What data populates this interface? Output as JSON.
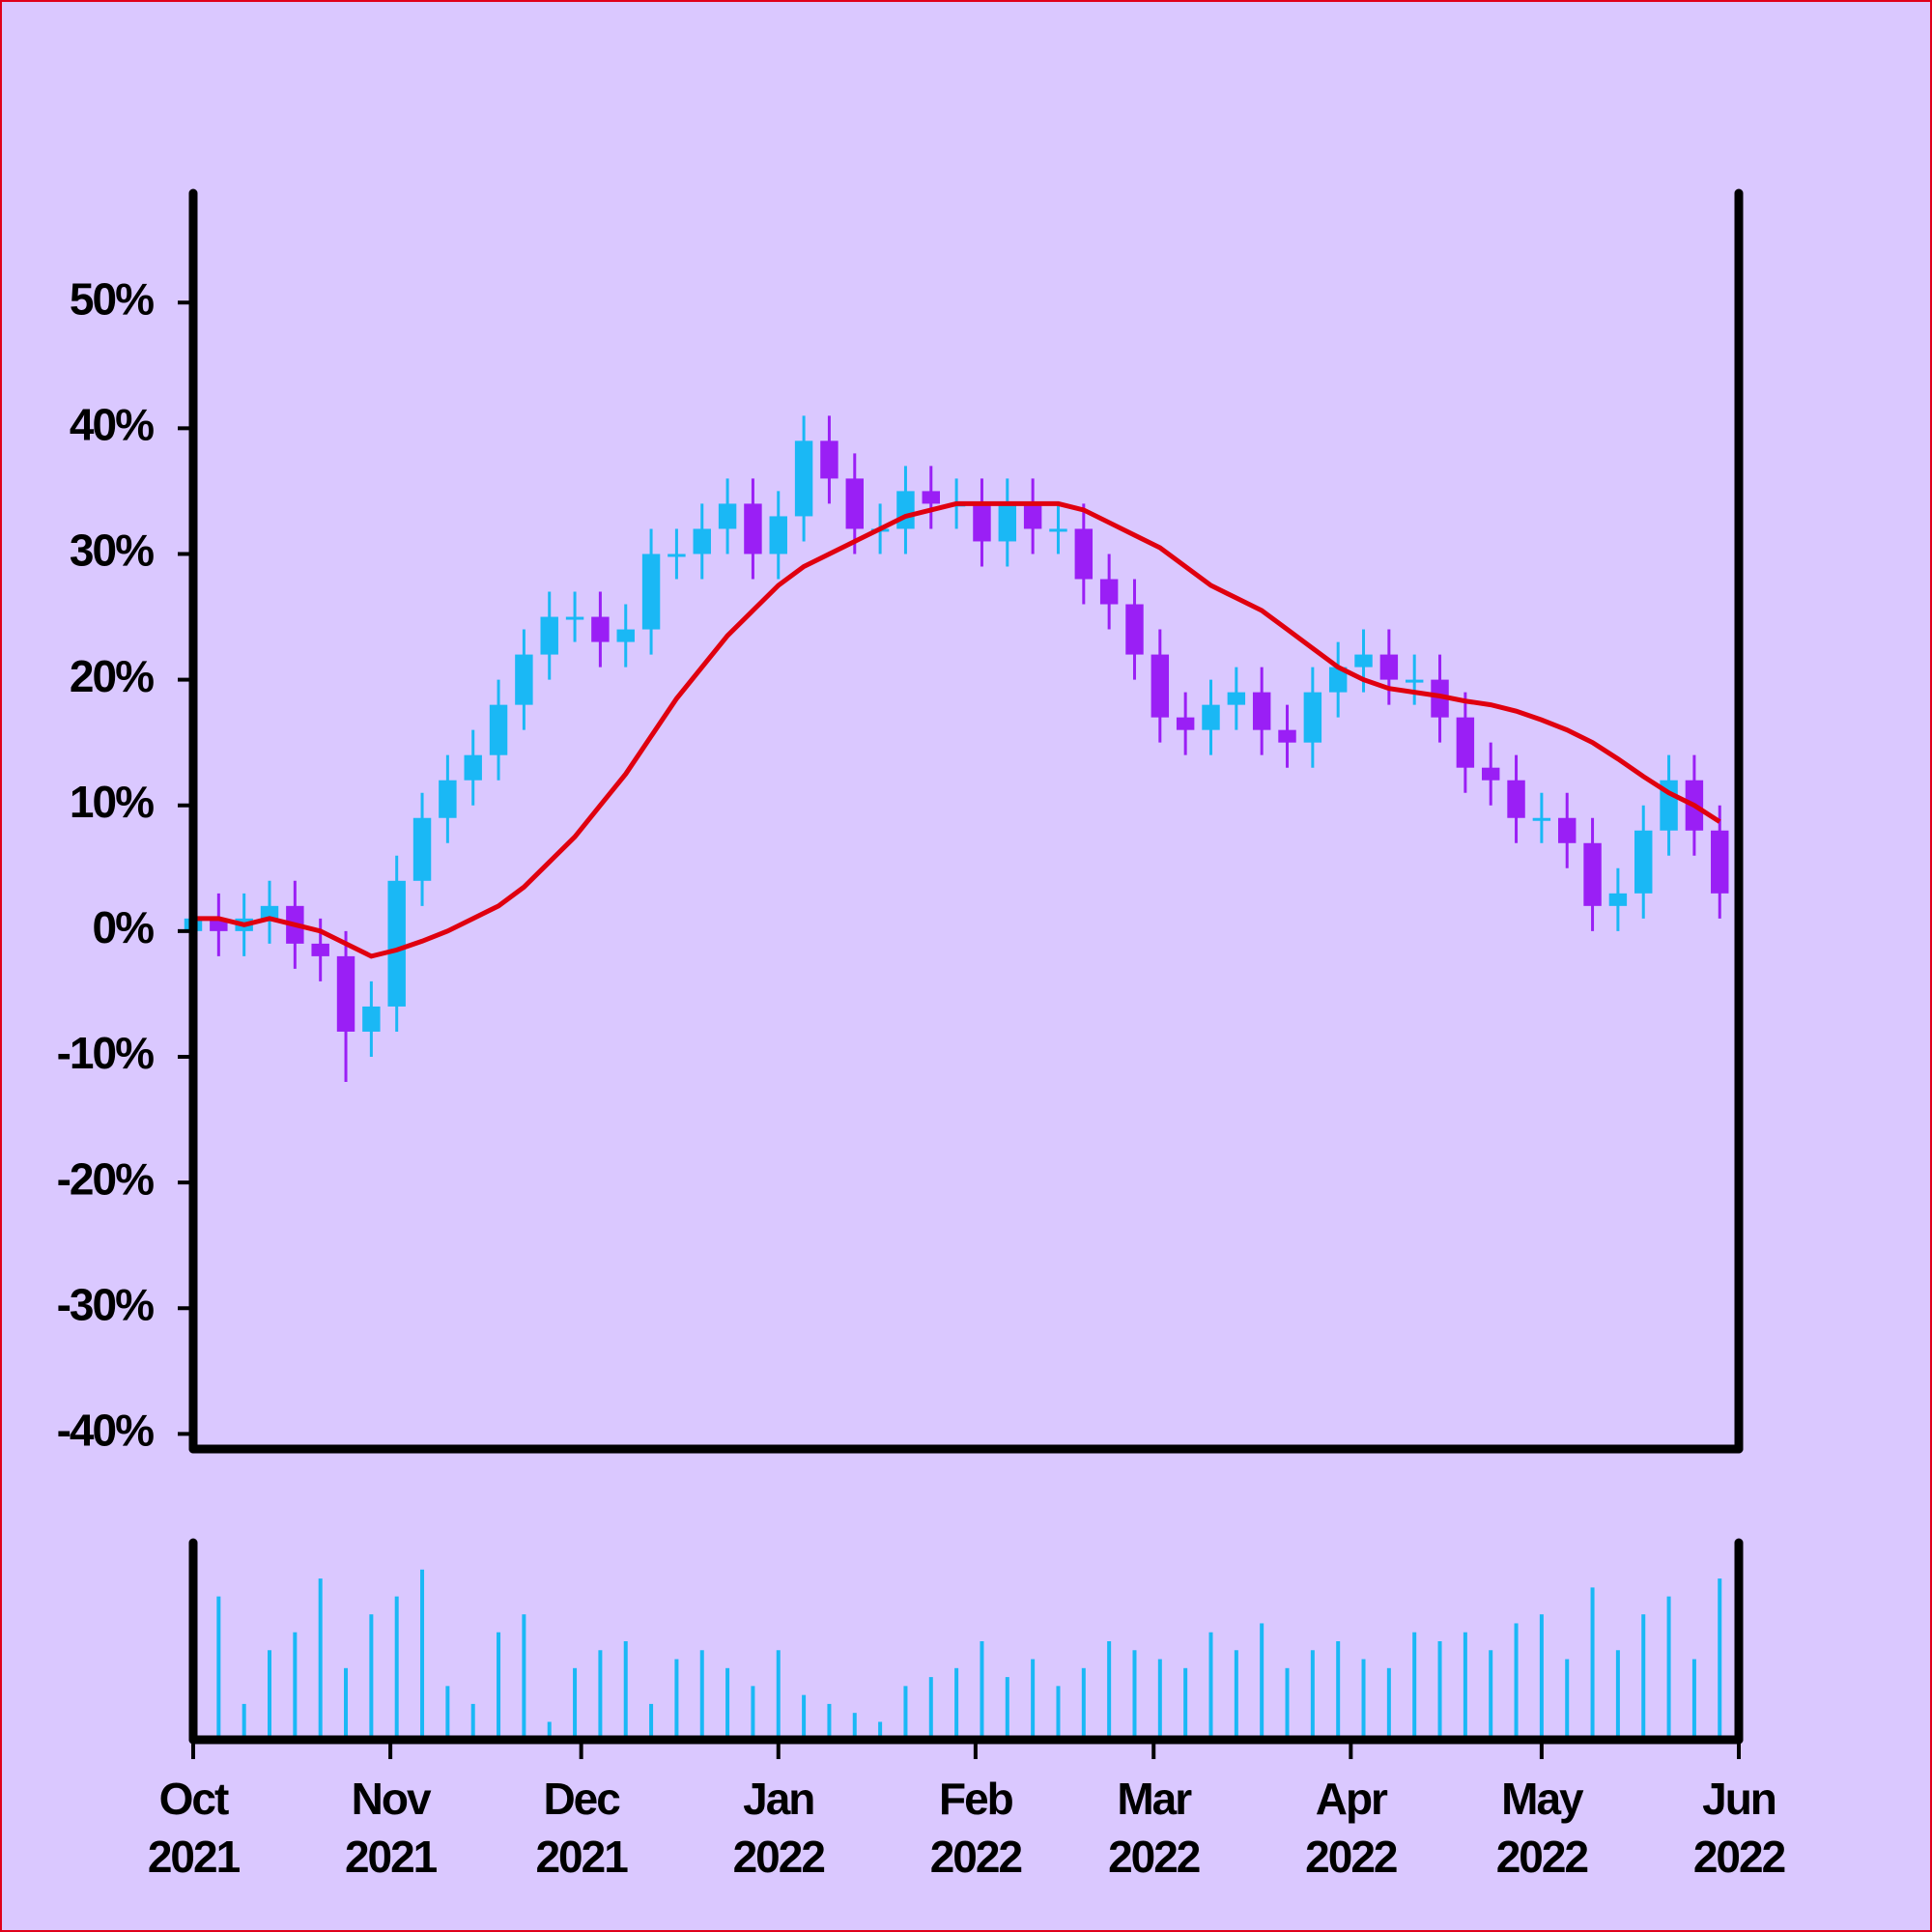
{
  "chart_data": {
    "type": "candlestick",
    "x": [
      0,
      4,
      8,
      12,
      16,
      20,
      24,
      28,
      32,
      36,
      40,
      44,
      48,
      52,
      56,
      60,
      64,
      68,
      72,
      76,
      80,
      84,
      88,
      92,
      96,
      100,
      104,
      108,
      112,
      116,
      120,
      124,
      128,
      132,
      136,
      140,
      144,
      148,
      152,
      156,
      160,
      164,
      168,
      172,
      176,
      180,
      184,
      188,
      192,
      196,
      200,
      204,
      208,
      212,
      216,
      220,
      224,
      228,
      232,
      236,
      240
    ],
    "open": [
      0,
      1,
      0,
      1,
      2,
      -1,
      -2,
      -8,
      -6,
      4,
      9,
      12,
      14,
      18,
      22,
      25,
      25,
      23,
      24,
      30,
      30,
      32,
      34,
      30,
      33,
      39,
      36,
      32,
      32,
      35,
      34,
      34,
      31,
      34,
      32,
      32,
      28,
      26,
      22,
      17,
      16,
      18,
      19,
      16,
      15,
      19,
      21,
      22,
      20,
      20,
      17,
      13,
      12,
      9,
      9,
      7,
      2,
      3,
      8,
      12,
      8
    ],
    "high": [
      3,
      3,
      3,
      4,
      4,
      1,
      0,
      -4,
      6,
      11,
      14,
      16,
      20,
      24,
      27,
      27,
      27,
      26,
      32,
      32,
      34,
      36,
      36,
      35,
      41,
      41,
      38,
      34,
      37,
      37,
      36,
      36,
      36,
      36,
      34,
      34,
      30,
      28,
      24,
      19,
      20,
      21,
      21,
      18,
      21,
      23,
      24,
      24,
      22,
      22,
      19,
      15,
      14,
      11,
      11,
      9,
      5,
      10,
      14,
      14,
      10
    ],
    "low": [
      -2,
      -2,
      -2,
      -1,
      -3,
      -4,
      -12,
      -10,
      -8,
      2,
      7,
      10,
      12,
      16,
      20,
      23,
      21,
      21,
      22,
      28,
      28,
      30,
      28,
      28,
      31,
      34,
      30,
      30,
      30,
      32,
      32,
      29,
      29,
      30,
      30,
      26,
      24,
      20,
      15,
      14,
      14,
      16,
      14,
      13,
      13,
      17,
      19,
      18,
      18,
      15,
      11,
      10,
      7,
      7,
      5,
      0,
      0,
      1,
      6,
      6,
      1
    ],
    "close": [
      1,
      0,
      1,
      2,
      -1,
      -2,
      -8,
      -6,
      4,
      9,
      12,
      14,
      18,
      22,
      25,
      25,
      23,
      24,
      30,
      30,
      32,
      34,
      30,
      33,
      39,
      36,
      32,
      32,
      35,
      34,
      34,
      31,
      34,
      32,
      32,
      28,
      26,
      22,
      17,
      16,
      18,
      19,
      16,
      15,
      19,
      21,
      22,
      20,
      20,
      17,
      13,
      12,
      9,
      9,
      7,
      2,
      3,
      8,
      12,
      8,
      3
    ],
    "ma": [
      1,
      1,
      0.5,
      1,
      0.5,
      0,
      -1,
      -2,
      -1.5,
      -0.8,
      0,
      1,
      2,
      3.5,
      5.5,
      7.5,
      10,
      12.5,
      15.5,
      18.5,
      21,
      23.5,
      25.5,
      27.5,
      29,
      30,
      31,
      32,
      33,
      33.5,
      34,
      34,
      34,
      34,
      34,
      33.5,
      32.5,
      31.5,
      30.5,
      29,
      27.5,
      26.5,
      25.5,
      24,
      22.5,
      21,
      20,
      19.3,
      19,
      18.7,
      18.3,
      18,
      17.5,
      16.8,
      16,
      15,
      13.7,
      12.3,
      11,
      10,
      8.7
    ],
    "volume": [
      30,
      80,
      20,
      50,
      60,
      90,
      40,
      70,
      80,
      95,
      30,
      20,
      60,
      70,
      10,
      40,
      50,
      55,
      20,
      45,
      50,
      40,
      30,
      50,
      25,
      20,
      15,
      10,
      30,
      35,
      40,
      55,
      35,
      45,
      30,
      40,
      55,
      50,
      45,
      40,
      60,
      50,
      65,
      40,
      50,
      55,
      45,
      40,
      60,
      55,
      60,
      50,
      65,
      70,
      45,
      85,
      50,
      70,
      80,
      45,
      90
    ],
    "up_color": "#1ab8f5",
    "down_color": "#9a1ff5",
    "ma_color": "#e0000f",
    "volume_color": "#1ab8f5",
    "xlim": [
      0,
      243
    ],
    "ylim": [
      -41.2,
      58.7
    ],
    "volume_ylim": [
      0,
      110
    ],
    "xticks": [
      {
        "value": 0,
        "label": "Oct 2021"
      },
      {
        "value": 31,
        "label": "Nov 2021"
      },
      {
        "value": 61,
        "label": "Dec 2021"
      },
      {
        "value": 92,
        "label": "Jan 2022"
      },
      {
        "value": 123,
        "label": "Feb 2022"
      },
      {
        "value": 151,
        "label": "Mar 2022"
      },
      {
        "value": 182,
        "label": "Apr 2022"
      },
      {
        "value": 212,
        "label": "May 2022"
      },
      {
        "value": 243,
        "label": "Jun 2022"
      }
    ],
    "yticks": [
      {
        "value": -40,
        "label": "-40%"
      },
      {
        "value": -30,
        "label": "-30%"
      },
      {
        "value": -20,
        "label": "-20%"
      },
      {
        "value": -10,
        "label": "-10%"
      },
      {
        "value": 0,
        "label": "0%"
      },
      {
        "value": 10,
        "label": "10%"
      },
      {
        "value": 20,
        "label": "20%"
      },
      {
        "value": 30,
        "label": "30%"
      },
      {
        "value": 40,
        "label": "40%"
      },
      {
        "value": 50,
        "label": "50%"
      }
    ]
  }
}
